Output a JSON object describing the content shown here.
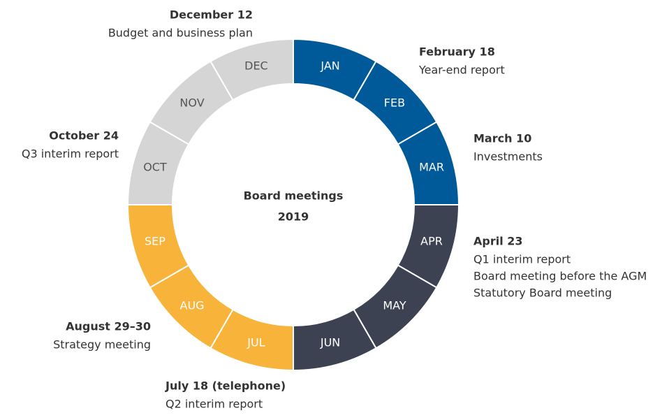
{
  "center_title": [
    "Board meetings",
    "2019"
  ],
  "months": [
    {
      "label": "JAN",
      "color": "#005a9a"
    },
    {
      "label": "FEB",
      "color": "#005a9a"
    },
    {
      "label": "MAR",
      "color": "#005a9a"
    },
    {
      "label": "APR",
      "color": "#3c4252"
    },
    {
      "label": "MAY",
      "color": "#3c4252"
    },
    {
      "label": "JUN",
      "color": "#3c4252"
    },
    {
      "label": "JUL",
      "color": "#f8b43a"
    },
    {
      "label": "AUG",
      "color": "#f8b43a"
    },
    {
      "label": "SEP",
      "color": "#f8b43a"
    },
    {
      "label": "OCT",
      "color": "#d5d5d5"
    },
    {
      "label": "NOV",
      "color": "#d5d5d5"
    },
    {
      "label": "DEC",
      "color": "#d5d5d5"
    }
  ],
  "meetings": [
    {
      "date": "December 12",
      "lines": [
        "Budget and business plan"
      ]
    },
    {
      "date": "February 18",
      "lines": [
        "Year-end report"
      ]
    },
    {
      "date": "March 10",
      "lines": [
        "Investments"
      ]
    },
    {
      "date": "April 23",
      "lines": [
        "Q1 interim report",
        "Board meeting before the AGM",
        "Statutory Board meeting"
      ]
    },
    {
      "date": "August 29–30",
      "lines": [
        "Strategy meeting"
      ]
    },
    {
      "date": "July 18 (telephone)",
      "lines": [
        "Q2 interim report"
      ]
    },
    {
      "date": "October 24",
      "lines": [
        "Q3 interim report"
      ]
    }
  ]
}
